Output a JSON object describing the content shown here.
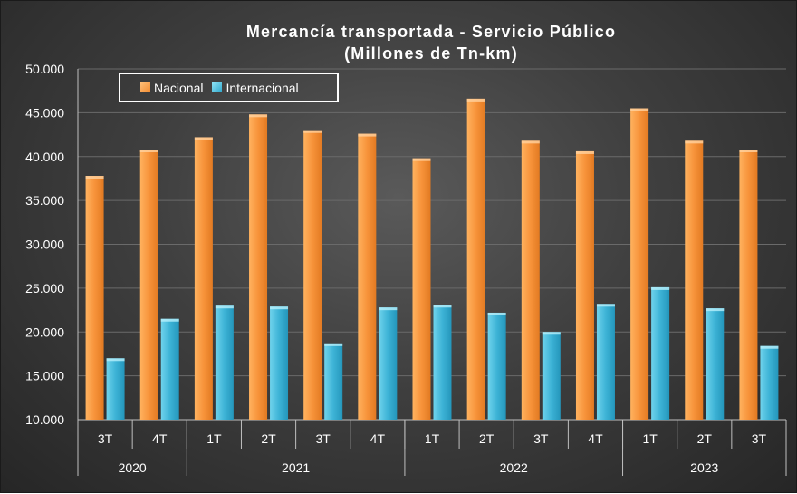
{
  "chart_data": {
    "type": "bar",
    "title_line1": "Mercancía transportada  - Servicio Público",
    "title_line2": "(Millones de Tn-km)",
    "categories": [
      "3T",
      "4T",
      "1T",
      "2T",
      "3T",
      "4T",
      "1T",
      "2T",
      "3T",
      "4T",
      "1T",
      "2T",
      "3T"
    ],
    "groups": [
      {
        "label": "2020",
        "count": 2
      },
      {
        "label": "2021",
        "count": 4
      },
      {
        "label": "2022",
        "count": 4
      },
      {
        "label": "2023",
        "count": 3
      }
    ],
    "series": [
      {
        "name": "Nacional",
        "color": "#f28a2e",
        "values": [
          37800,
          40800,
          42200,
          44800,
          43000,
          42600,
          39800,
          46600,
          41800,
          40600,
          45500,
          41800,
          40800
        ]
      },
      {
        "name": "Internacional",
        "color": "#2fa7cc",
        "values": [
          17000,
          21500,
          23000,
          22900,
          18700,
          22800,
          23100,
          22200,
          20000,
          23200,
          25100,
          22700,
          18400
        ]
      }
    ],
    "ylim": [
      10000,
      50000
    ],
    "yticks": [
      "10.000",
      "15.000",
      "20.000",
      "25.000",
      "30.000",
      "35.000",
      "40.000",
      "45.000",
      "50.000"
    ],
    "legend": "top-left, boxed",
    "grid": true
  }
}
